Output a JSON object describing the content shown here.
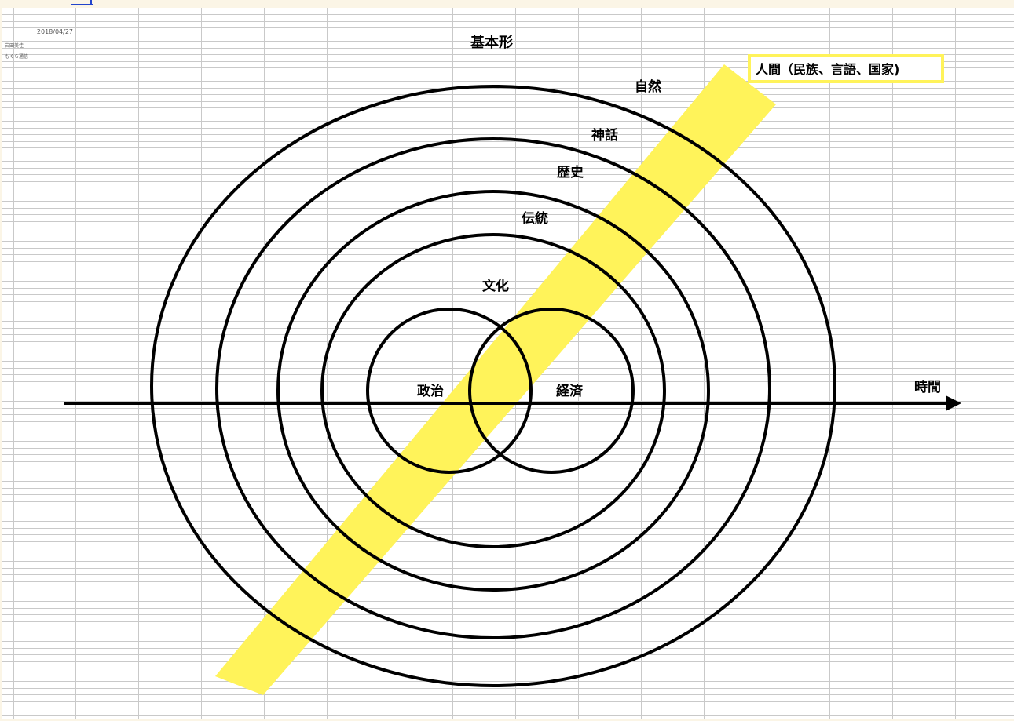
{
  "meta": {
    "date": "2018/04/27",
    "author": "岩田美佳",
    "source": "もぐら通信"
  },
  "diagram": {
    "title": "基本形",
    "circle_labels": {
      "nature": "自然",
      "myth": "神話",
      "history": "歴史",
      "tradition": "伝統",
      "culture": "文化",
      "politics": "政治",
      "economy": "経済"
    },
    "axis_label": "時間",
    "band_label": "人間（民族、言語、国家)"
  },
  "colors": {
    "band": "#fff35a",
    "band_box_border": "#fff35a",
    "line": "#000000",
    "grid": "#c9c9c9",
    "sheet": "#ffffff",
    "frame": "#fbf5e6",
    "link": "#2244cc"
  }
}
